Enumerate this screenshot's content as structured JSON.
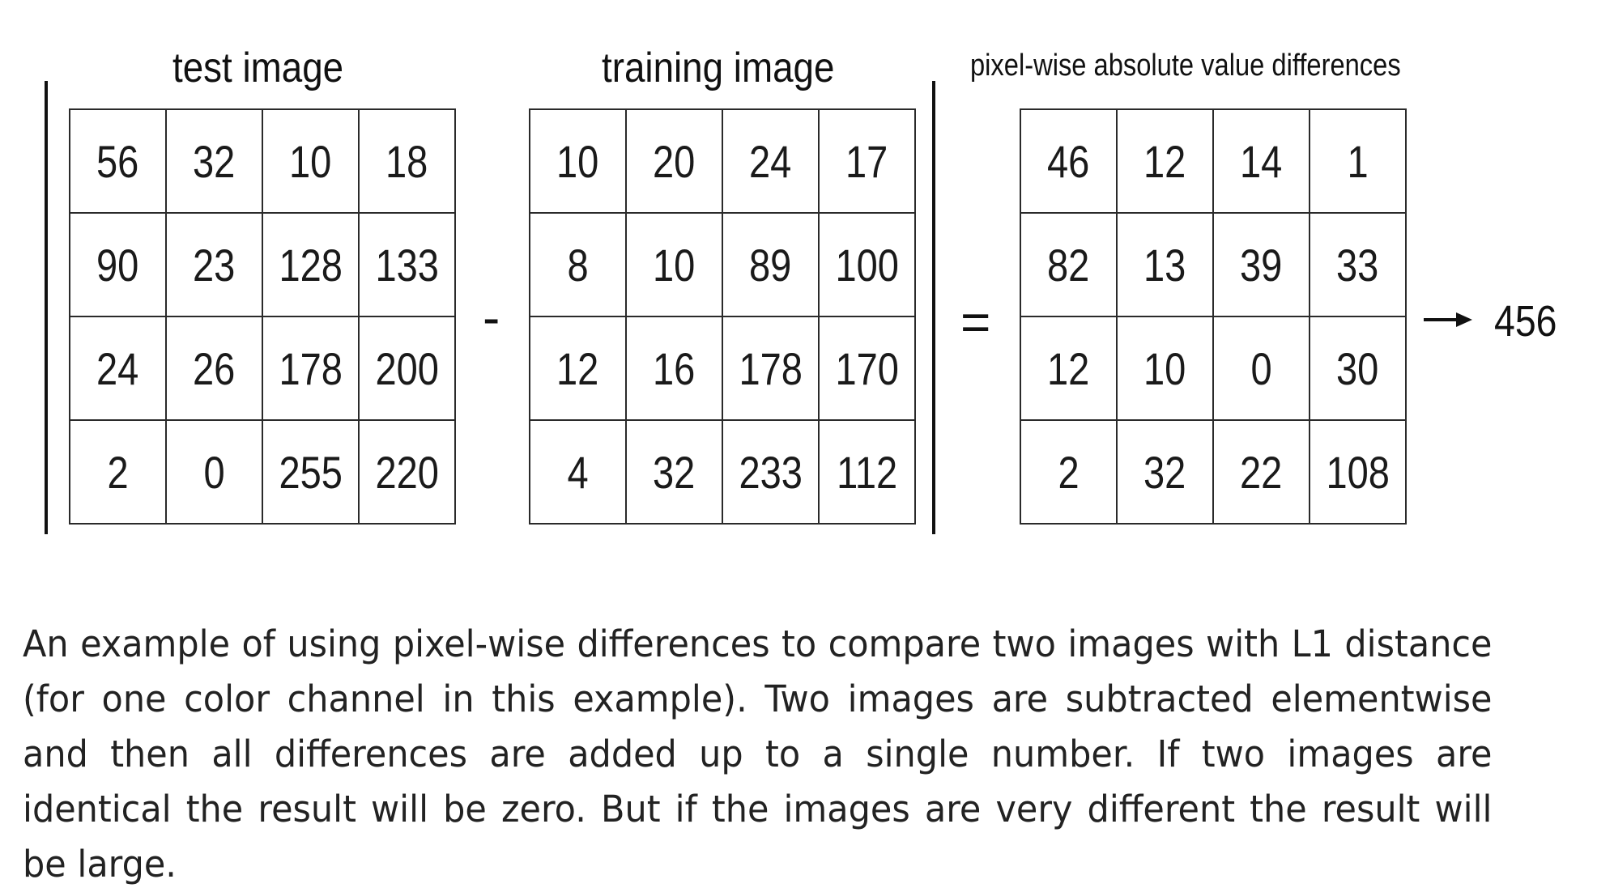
{
  "diagram": {
    "titles": {
      "test": "test image",
      "training": "training image",
      "diff": "pixel-wise absolute value differences"
    },
    "operators": {
      "minus": "-",
      "equals": "="
    },
    "test_image": [
      [
        "56",
        "32",
        "10",
        "18"
      ],
      [
        "90",
        "23",
        "128",
        "133"
      ],
      [
        "24",
        "26",
        "178",
        "200"
      ],
      [
        "2",
        "0",
        "255",
        "220"
      ]
    ],
    "training_image": [
      [
        "10",
        "20",
        "24",
        "17"
      ],
      [
        "8",
        "10",
        "89",
        "100"
      ],
      [
        "12",
        "16",
        "178",
        "170"
      ],
      [
        "4",
        "32",
        "233",
        "112"
      ]
    ],
    "differences": [
      [
        "46",
        "12",
        "14",
        "1"
      ],
      [
        "82",
        "13",
        "39",
        "33"
      ],
      [
        "12",
        "10",
        "0",
        "30"
      ],
      [
        "2",
        "32",
        "22",
        "108"
      ]
    ],
    "result": "456",
    "arrow_icon": "right-arrow-icon"
  },
  "caption": "An example of using pixel-wise differences to compare two images with L1 distance (for one color channel in this example). Two images are subtracted elementwise and then all differences are added up to a single number. If two images are identical the result will be zero. But if the images are very different the result will be large."
}
